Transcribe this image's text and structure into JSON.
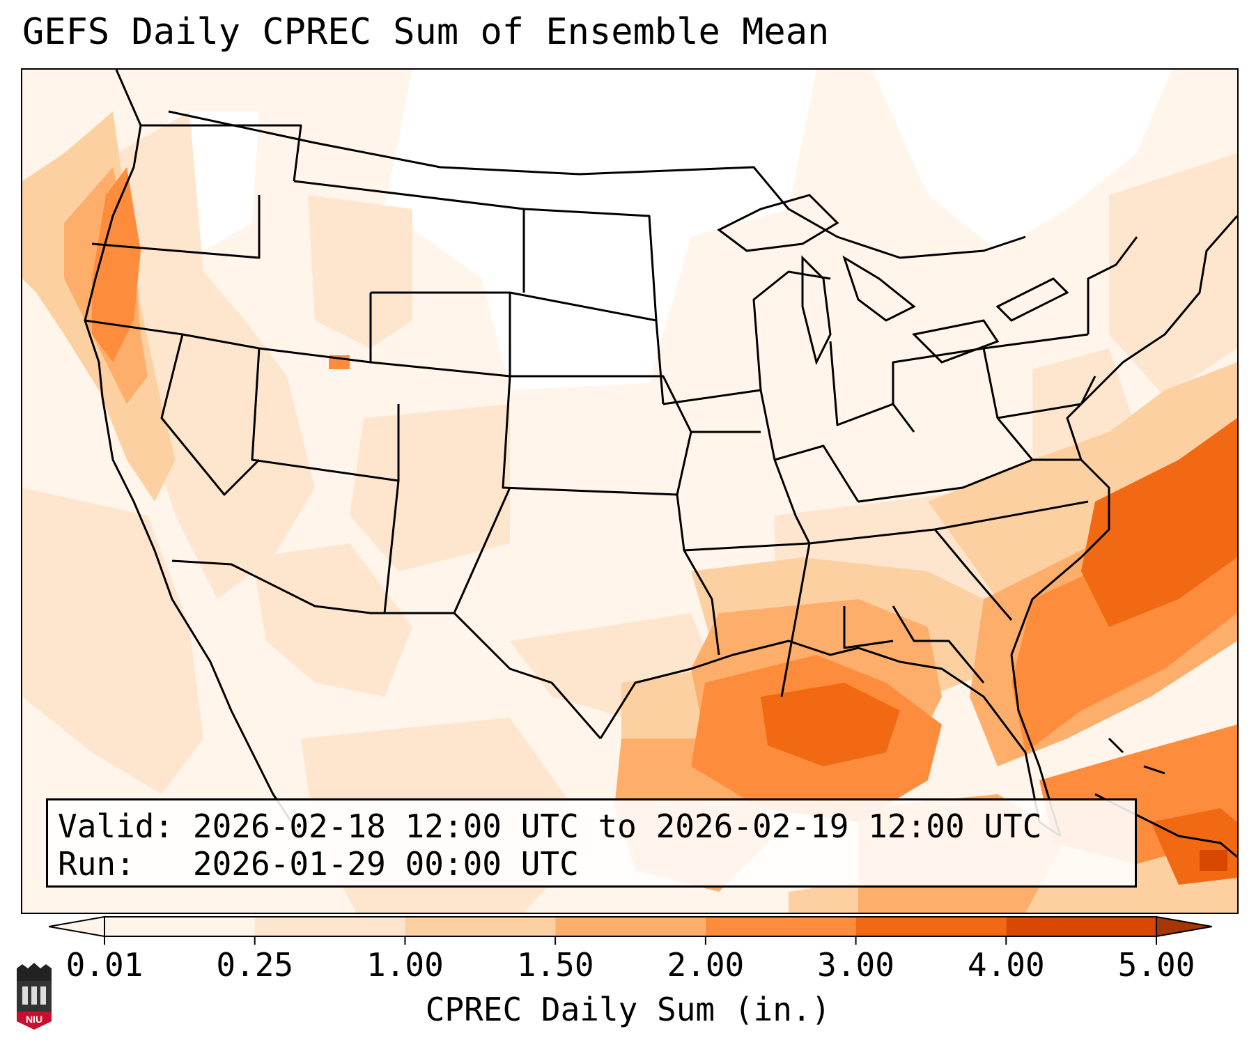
{
  "title": "GEFS Daily CPREC Sum of Ensemble Mean",
  "valid_box": {
    "valid_label": "Valid:",
    "valid_value": "2026-02-18 12:00 UTC to 2026-02-19 12:00 UTC",
    "run_label": "Run:",
    "run_value": "2026-01-29 00:00 UTC"
  },
  "colorbar": {
    "label": "CPREC Daily Sum (in.)",
    "ticks": [
      "0.01",
      "0.25",
      "1.00",
      "1.50",
      "2.00",
      "3.00",
      "4.00",
      "5.00"
    ],
    "colors": [
      "#fff5eb",
      "#fee6ce",
      "#fdd0a2",
      "#fdae6b",
      "#fd8d3c",
      "#f16913",
      "#d94801",
      "#a63603"
    ],
    "extend": "both"
  },
  "map": {
    "region": "CONUS",
    "field": "CPREC daily sum ensemble mean",
    "heaviest_areas": [
      "Gulf of Mexico",
      "Southeast US",
      "Western Atlantic",
      "Pacific Northwest coast"
    ]
  },
  "logo": {
    "text": "NIU"
  }
}
